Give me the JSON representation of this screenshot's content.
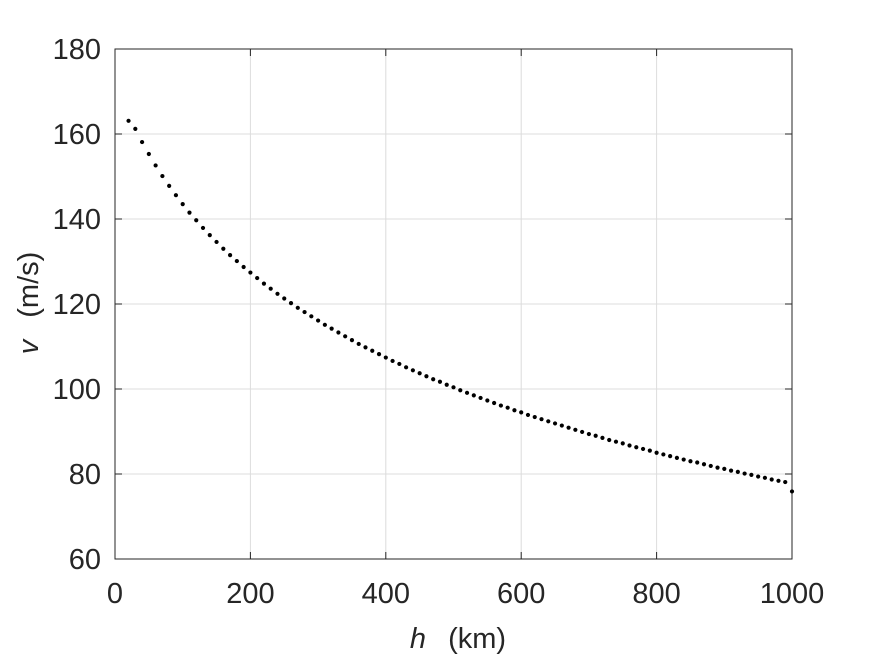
{
  "chart_data": {
    "type": "scatter",
    "title": "",
    "xlabel": {
      "symbol": "h",
      "unit": "(km)"
    },
    "ylabel": {
      "symbol": "v",
      "unit": "(m/s)"
    },
    "xlim": [
      0,
      1000
    ],
    "ylim": [
      60,
      180
    ],
    "xticks": [
      0,
      200,
      400,
      600,
      800,
      1000
    ],
    "yticks": [
      60,
      80,
      100,
      120,
      140,
      160,
      180
    ],
    "grid": true,
    "box": true,
    "marker_color": "#000000",
    "series": [
      {
        "x": [
          20,
          30,
          40,
          50,
          60,
          70,
          80,
          90,
          100,
          110,
          120,
          130,
          140,
          150,
          160,
          170,
          180,
          190,
          200,
          210,
          220,
          230,
          240,
          250,
          260,
          270,
          280,
          290,
          300,
          310,
          320,
          330,
          340,
          350,
          360,
          370,
          380,
          390,
          400,
          410,
          420,
          430,
          440,
          450,
          460,
          470,
          480,
          490,
          500,
          510,
          520,
          530,
          540,
          550,
          560,
          570,
          580,
          590,
          600,
          610,
          620,
          630,
          640,
          650,
          660,
          670,
          680,
          690,
          700,
          710,
          720,
          730,
          740,
          750,
          760,
          770,
          780,
          790,
          800,
          810,
          820,
          830,
          840,
          850,
          860,
          870,
          880,
          890,
          900,
          910,
          920,
          930,
          940,
          950,
          960,
          970,
          980,
          990,
          1000
        ],
        "y": [
          163.1,
          161.2,
          158.1,
          155.3,
          152.6,
          150.1,
          147.8,
          145.6,
          143.5,
          141.5,
          139.7,
          137.9,
          136.2,
          134.6,
          133.0,
          131.5,
          130.1,
          128.7,
          127.4,
          126.1,
          124.8,
          123.6,
          122.4,
          121.3,
          120.2,
          119.1,
          118.1,
          117.1,
          116.1,
          115.1,
          114.2,
          113.3,
          112.4,
          111.5,
          110.6,
          109.8,
          109.0,
          108.2,
          107.4,
          106.6,
          105.9,
          105.1,
          104.4,
          103.7,
          103.0,
          102.3,
          101.7,
          101.0,
          100.4,
          99.7,
          99.1,
          98.5,
          97.9,
          97.3,
          96.7,
          96.1,
          95.6,
          95.0,
          94.5,
          93.9,
          93.4,
          92.9,
          92.4,
          91.9,
          91.4,
          90.9,
          90.4,
          89.9,
          89.4,
          89.0,
          88.5,
          88.0,
          87.6,
          87.2,
          86.7,
          86.3,
          85.9,
          85.5,
          85.0,
          84.6,
          84.2,
          83.8,
          83.4,
          83.0,
          82.7,
          82.3,
          81.9,
          81.5,
          81.2,
          80.8,
          80.5,
          80.1,
          79.8,
          79.4,
          79.1,
          78.7,
          78.4,
          78.1,
          75.9
        ]
      }
    ]
  }
}
